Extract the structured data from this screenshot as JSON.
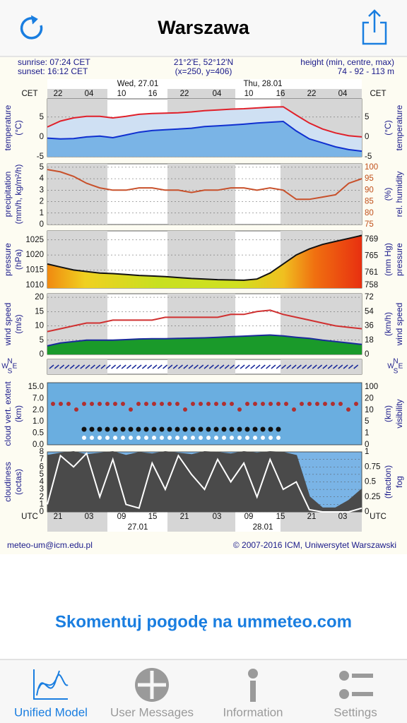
{
  "header": {
    "title": "Warszawa"
  },
  "meteogram": {
    "info": {
      "sunrise": "sunrise: 07:24 CET",
      "sunset": "sunset: 16:12 CET",
      "coords": "21°2'E, 52°12'N",
      "grid": "(x=250, y=406)",
      "height_label": "height (min, centre, max)",
      "height": "74 - 92 - 113 m"
    },
    "days": [
      "Wed, 27.01",
      "Thu, 28.01"
    ],
    "tz_top": "CET",
    "hours_top": [
      "22",
      "04",
      "10",
      "16",
      "22",
      "04",
      "10",
      "16",
      "22",
      "04"
    ],
    "tz_bottom": "UTC",
    "hours_bottom": [
      "21",
      "03",
      "09",
      "15",
      "21",
      "03",
      "09",
      "15",
      "21",
      "03"
    ],
    "dates": [
      "27.01",
      "28.01"
    ],
    "panels": [
      {
        "left": [
          "temperature",
          "(°C)"
        ],
        "right": [
          "(°C)",
          "temperature"
        ],
        "ylim": [
          -5,
          9.6
        ],
        "yticks": [
          5,
          0,
          -5
        ],
        "y2lim": [
          -5,
          9.6
        ],
        "y2ticks": [
          5,
          0,
          -5
        ],
        "lines": [
          {
            "color": "#e0202a",
            "fill": "#cfe0f3",
            "values": [
              2.5,
              4,
              4.8,
              5.2,
              5.2,
              4.8,
              5.2,
              5.7,
              5.9,
              6,
              6.1,
              6.3,
              6.6,
              6.8,
              7,
              7.1,
              7.3,
              7.5,
              7.6,
              5.5,
              3.5,
              2,
              1,
              0.3,
              0
            ]
          },
          {
            "color": "#1030d0",
            "fill": "#7ab4e6",
            "values": [
              -0.3,
              -0.5,
              -0.4,
              0,
              0.2,
              -0.2,
              0.5,
              1.2,
              1.6,
              1.8,
              2,
              2.2,
              2.6,
              2.8,
              3,
              3.2,
              3.5,
              3.7,
              3.9,
              1.5,
              -0.5,
              -1.5,
              -2.5,
              -3.2,
              -3.6
            ]
          }
        ]
      },
      {
        "left": [
          "precipitation",
          "(mm/h, kg/m²/h)"
        ],
        "right": [
          "(%)",
          "rel. humidity"
        ],
        "ylim": [
          0,
          5.3
        ],
        "yticks": [
          5,
          4,
          3,
          2,
          1,
          0
        ],
        "y2lim": [
          75,
          101.5
        ],
        "y2ticks": [
          100,
          95,
          90,
          85,
          80,
          75
        ],
        "lines": [
          {
            "color": "#c8502a",
            "axis": "y2",
            "values": [
              99,
              98,
              96,
              93,
              91,
              90,
              90,
              91,
              91,
              90,
              90,
              89,
              90,
              90,
              91,
              91,
              90,
              91,
              90,
              86,
              86,
              87,
              88,
              93,
              95
            ]
          }
        ]
      },
      {
        "left": [
          "pressure",
          "(hPa)"
        ],
        "right": [
          "(mm Hg)",
          "pressure"
        ],
        "ylim": [
          1009,
          1028
        ],
        "yticks": [
          1025,
          1020,
          1015,
          1010
        ],
        "y2lim": [
          757.3,
          771
        ],
        "y2ticks": [
          769,
          765,
          761,
          758
        ],
        "lines": [
          {
            "color": "#111111",
            "gradient": true,
            "values": [
              1017,
              1016,
              1015,
              1014.5,
              1014,
              1013.8,
              1013.5,
              1013.2,
              1013,
              1012.8,
              1012.5,
              1012.2,
              1012,
              1011.8,
              1011.7,
              1011.6,
              1012,
              1014,
              1017,
              1020,
              1022,
              1023.5,
              1024.5,
              1025.5,
              1026.5
            ]
          }
        ]
      },
      {
        "left": [
          "wind speed",
          "(m/s)"
        ],
        "right": [
          "(km/h)",
          "wind speed"
        ],
        "ylim": [
          0,
          21.25
        ],
        "yticks": [
          20,
          15,
          10,
          5,
          0
        ],
        "y2lim": [
          0,
          76.5
        ],
        "y2ticks": [
          72,
          54,
          36,
          18,
          0
        ],
        "lines": [
          {
            "color": "#1a2a9a",
            "fill": "#1a9a2a",
            "values": [
              3,
              4,
              4.5,
              5,
              5,
              5,
              5.2,
              5.4,
              5.5,
              5.5,
              5.6,
              5.7,
              5.8,
              6,
              6.2,
              6.4,
              6.6,
              6.8,
              6.5,
              6,
              5.6,
              5,
              4.5,
              4,
              3.5
            ]
          },
          {
            "color": "#d03030",
            "values": [
              8,
              9,
              10,
              11,
              11,
              12,
              12,
              12,
              12,
              13,
              13,
              13,
              13,
              13,
              14,
              14,
              15,
              15.5,
              14,
              13,
              12,
              11,
              10,
              9.5,
              9
            ]
          }
        ]
      },
      {
        "compass": [
          "W",
          "N",
          "S",
          "E"
        ]
      },
      {
        "left": [
          "cloud vert. extent",
          "(km)"
        ],
        "right": [
          "(km)",
          "visibility"
        ],
        "bg": "#6aaee0",
        "yticks": [
          {
            "value": 15,
            "label": "15.0"
          },
          {
            "value": 7,
            "label": "7.0"
          },
          {
            "value": 2,
            "label": "2.0"
          },
          {
            "value": 1,
            "label": "1.0"
          },
          0.5,
          {
            "value": 0,
            "label": "0.0"
          }
        ],
        "y2ticks": [
          100,
          20,
          10,
          5,
          1,
          0
        ]
      },
      {
        "left": [
          "cloudiness",
          "(octas)"
        ],
        "right": [
          "(fraction)",
          "fog"
        ],
        "bg": "#7ab4e6",
        "ylim": [
          0,
          8
        ],
        "yticks": [
          8,
          7,
          6,
          5,
          4,
          3,
          2,
          1,
          0
        ],
        "y2lim": [
          0,
          1
        ],
        "y2ticks": [
          1,
          0.75,
          0.5,
          0.25,
          0
        ],
        "lines": [
          {
            "color": "#4a4a4a",
            "fill": "#4a4a4a",
            "values": [
              7.5,
              7.8,
              8,
              7.6,
              7.8,
              8,
              7.5,
              7.9,
              7.7,
              8,
              7.8,
              7.6,
              8,
              7.9,
              7.7,
              8,
              7.8,
              8,
              7.9,
              7.5,
              2,
              0.5,
              0.5,
              1.5,
              3
            ]
          },
          {
            "color": "#ffffff",
            "values": [
              1,
              7.5,
              6,
              7.8,
              2,
              7,
              1,
              0.5,
              6.5,
              3,
              7.5,
              5,
              3,
              7,
              4,
              6.5,
              2,
              7,
              3,
              4,
              0.3,
              0,
              0,
              0,
              0.5
            ]
          }
        ]
      }
    ]
  },
  "footer": {
    "email": "meteo-um@icm.edu.pl",
    "copyright": "© 2007-2016 ICM, Uniwersytet Warszawski"
  },
  "link": "Skomentuj pogodę na ummeteo.com",
  "tabs": [
    "Unified Model",
    "User Messages",
    "Information",
    "Settings"
  ]
}
